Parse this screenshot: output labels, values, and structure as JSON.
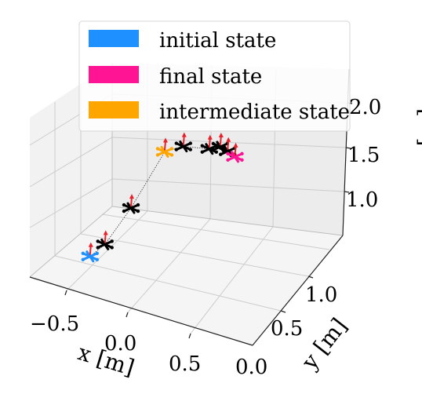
{
  "chart_data": {
    "type": "scatter",
    "projection": "3d",
    "xlabel": "x [m]",
    "ylabel": "y [m]",
    "zlabel": "z [m]",
    "xticks": [
      "−0.5",
      "0.0",
      "0.5"
    ],
    "yticks": [
      "0.0",
      "0.5",
      "1.0"
    ],
    "zticks": [
      "1.0",
      "1.5",
      "2.0"
    ],
    "grid": true,
    "legend_position": "top",
    "legend": [
      {
        "label": "initial state",
        "color": "#1e90ff"
      },
      {
        "label": "final state",
        "color": "#ff1493"
      },
      {
        "label": "intermediate state",
        "color": "#ffa500"
      }
    ],
    "poses": [
      {
        "state": "initial",
        "x": -0.4,
        "y": 0.1,
        "z": 1.0
      },
      {
        "state": "intermediate_path",
        "x": -0.35,
        "y": 0.2,
        "z": 1.05
      },
      {
        "state": "intermediate_path",
        "x": -0.3,
        "y": 0.45,
        "z": 1.2
      },
      {
        "state": "intermediate",
        "x": -0.25,
        "y": 0.8,
        "z": 1.45
      },
      {
        "state": "intermediate_path",
        "x": -0.15,
        "y": 0.85,
        "z": 1.5
      },
      {
        "state": "intermediate_path",
        "x": 0.0,
        "y": 0.9,
        "z": 1.5
      },
      {
        "state": "intermediate_path",
        "x": 0.05,
        "y": 0.95,
        "z": 1.5
      },
      {
        "state": "intermediate_path",
        "x": 0.1,
        "y": 0.95,
        "z": 1.48
      },
      {
        "state": "final",
        "x": 0.15,
        "y": 0.95,
        "z": 1.45
      }
    ],
    "colors": {
      "initial": "#1e90ff",
      "final": "#ff1493",
      "intermediate": "#ffa500",
      "intermediate_path": "#000000",
      "thrust_arrow": "#e8202a"
    }
  }
}
